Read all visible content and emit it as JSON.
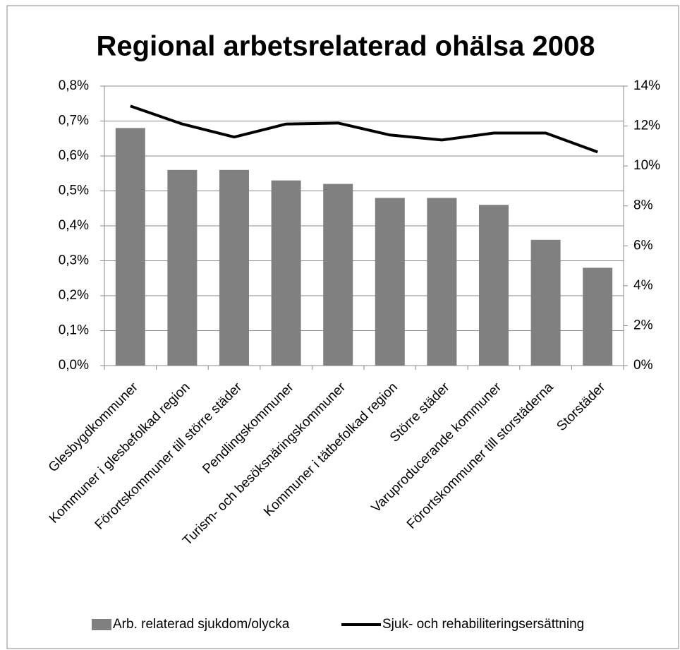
{
  "chart_data": {
    "type": "bar_line",
    "title": "Regional arbetsrelaterad ohälsa 2008",
    "categories": [
      "Glesbygdkommuner",
      "Kommuner i glesbefolkad region",
      "Förortskommuner till större städer",
      "Pendlingskommuner",
      "Turism- och besöksnäringskommuner",
      "Kommuner i tätbefolkad region",
      "Större städer",
      "Varuproducerande kommuner",
      "Förortskommuner till storstäderna",
      "Storstäder"
    ],
    "series": [
      {
        "name": "Arb. relaterad sjukdom/olycka",
        "type": "bar",
        "color": "#808080",
        "values": [
          0.68,
          0.56,
          0.56,
          0.53,
          0.52,
          0.48,
          0.48,
          0.46,
          0.36,
          0.28
        ]
      },
      {
        "name": "Sjuk- och rehabiliteringsersättning",
        "type": "line",
        "axis": "y2",
        "color": "#000000",
        "values": [
          13.0,
          12.1,
          11.45,
          12.1,
          12.15,
          11.55,
          11.3,
          11.65,
          11.65,
          10.7
        ]
      }
    ],
    "ylim": [
      0,
      0.8
    ],
    "yticks": [
      {
        "value": 0,
        "label": "0,0%"
      },
      {
        "value": 0.1,
        "label": "0,1%"
      },
      {
        "value": 0.2,
        "label": "0,2%"
      },
      {
        "value": 0.3,
        "label": "0,3%"
      },
      {
        "value": 0.4,
        "label": "0,4%"
      },
      {
        "value": 0.5,
        "label": "0,5%"
      },
      {
        "value": 0.6,
        "label": "0,6%"
      },
      {
        "value": 0.7,
        "label": "0,7%"
      },
      {
        "value": 0.8,
        "label": "0,8%"
      }
    ],
    "y2lim": [
      0,
      14
    ],
    "y2ticks": [
      {
        "value": 0,
        "label": "0%"
      },
      {
        "value": 2,
        "label": "2%"
      },
      {
        "value": 4,
        "label": "4%"
      },
      {
        "value": 6,
        "label": "6%"
      },
      {
        "value": 8,
        "label": "8%"
      },
      {
        "value": 10,
        "label": "10%"
      },
      {
        "value": 12,
        "label": "12%"
      },
      {
        "value": 14,
        "label": "14%"
      }
    ],
    "grid": true,
    "legend": "bottom"
  }
}
